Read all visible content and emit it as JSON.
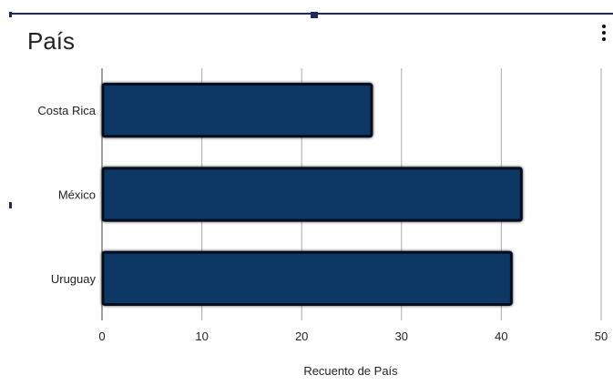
{
  "title": "País",
  "menu_icon": "more-vert-icon",
  "colors": {
    "bar_fill": "#0d3766",
    "bar_edge": "#05101e",
    "gridline": "#aaaaaa",
    "selection": "#1f2a5a"
  },
  "chart_data": {
    "type": "bar",
    "orientation": "horizontal",
    "title": "País",
    "xlabel": "Recuento de País",
    "ylabel": "",
    "categories": [
      "Costa Rica",
      "México",
      "Uruguay"
    ],
    "values": [
      27,
      42,
      41
    ],
    "xlim": [
      0,
      50
    ],
    "x_ticks": [
      0,
      10,
      20,
      30,
      40,
      50
    ],
    "grid": true,
    "legend": "none"
  }
}
